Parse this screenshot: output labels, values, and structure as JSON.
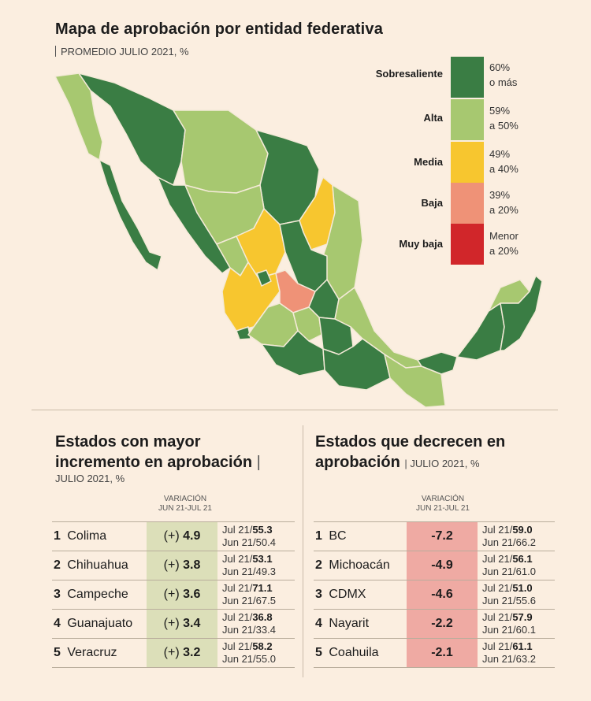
{
  "map": {
    "title": "Mapa de aprobación por entidad federativa",
    "subtitle": "PROMEDIO JULIO 2021, %",
    "legend": [
      {
        "label": "Sobresaliente",
        "range_line1": "60%",
        "range_line2": "o más",
        "color": "#3a7d44"
      },
      {
        "label": "Alta",
        "range_line1": "59%",
        "range_line2": "a 50%",
        "color": "#a7c870"
      },
      {
        "label": "Media",
        "range_line1": "49%",
        "range_line2": "a 40%",
        "color": "#f7c62f"
      },
      {
        "label": "Baja",
        "range_line1": "39%",
        "range_line2": "a 20%",
        "color": "#ef9277"
      },
      {
        "label": "Muy baja",
        "range_line1": "Menor",
        "range_line2": "a 20%",
        "color": "#d1262a"
      }
    ]
  },
  "left_section": {
    "title_line1": "Estados con mayor",
    "title_line2": "incremento en aprobación",
    "subtitle": "JULIO 2021, %",
    "var_header_line1": "VARIACIÓN",
    "var_header_line2": "JUN 21-JUL 21",
    "rows": [
      {
        "rank": "1",
        "state": "Colima",
        "sign": "(+)",
        "var": "4.9",
        "jul_label": "Jul 21/",
        "jul": "55.3",
        "jun_label": "Jun 21/",
        "jun": "50.4"
      },
      {
        "rank": "2",
        "state": "Chihuahua",
        "sign": "(+)",
        "var": "3.8",
        "jul_label": "Jul 21/",
        "jul": "53.1",
        "jun_label": "Jun 21/",
        "jun": "49.3"
      },
      {
        "rank": "3",
        "state": "Campeche",
        "sign": "(+)",
        "var": "3.6",
        "jul_label": "Jul 21/",
        "jul": "71.1",
        "jun_label": "Jun 21/",
        "jun": "67.5"
      },
      {
        "rank": "4",
        "state": "Guanajuato",
        "sign": "(+)",
        "var": "3.4",
        "jul_label": "Jul 21/",
        "jul": "36.8",
        "jun_label": "Jun 21/",
        "jun": "33.4"
      },
      {
        "rank": "5",
        "state": "Veracruz",
        "sign": "(+)",
        "var": "3.2",
        "jul_label": "Jul 21/",
        "jul": "58.2",
        "jun_label": "Jun 21/",
        "jun": "55.0"
      }
    ]
  },
  "right_section": {
    "title_line1": "Estados que decrecen en",
    "title_line2": "aprobación",
    "subtitle": "JULIO 2021, %",
    "var_header_line1": "VARIACIÓN",
    "var_header_line2": "JUN 21-JUL 21",
    "rows": [
      {
        "rank": "1",
        "state": "BC",
        "var": "-7.2",
        "jul_label": "Jul 21/",
        "jul": "59.0",
        "jun_label": "Jun 21/",
        "jun": "66.2"
      },
      {
        "rank": "2",
        "state": "Michoacán",
        "var": "-4.9",
        "jul_label": "Jul 21/",
        "jul": "56.1",
        "jun_label": "Jun 21/",
        "jun": "61.0"
      },
      {
        "rank": "3",
        "state": "CDMX",
        "var": "-4.6",
        "jul_label": "Jul 21/",
        "jul": "51.0",
        "jun_label": "Jun 21/",
        "jun": "55.6"
      },
      {
        "rank": "4",
        "state": "Nayarit",
        "var": "-2.2",
        "jul_label": "Jul 21/",
        "jul": "57.9",
        "jun_label": "Jun 21/",
        "jun": "60.1"
      },
      {
        "rank": "5",
        "state": "Coahuila",
        "var": "-2.1",
        "jul_label": "Jul 21/",
        "jul": "61.1",
        "jun_label": "Jun 21/",
        "jun": "63.2"
      }
    ]
  }
}
